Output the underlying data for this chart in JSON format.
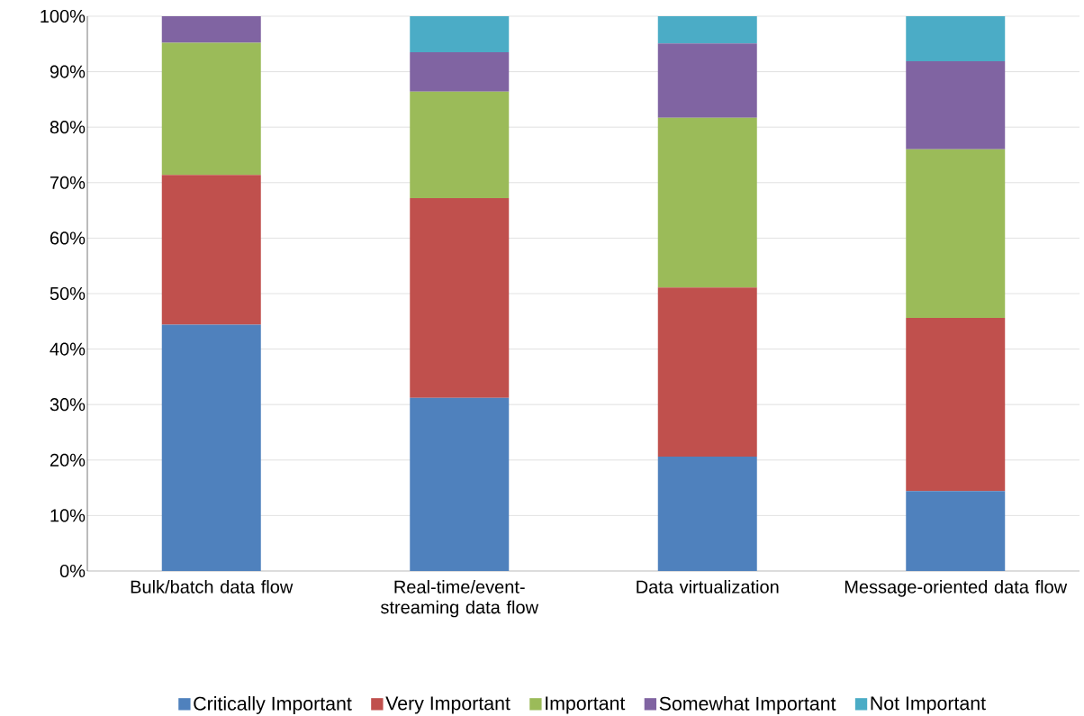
{
  "chart_data": {
    "type": "bar",
    "stacked": true,
    "categories": [
      "Bulk/batch data flow",
      "Real-time/event-streaming data flow",
      "Data virtualization",
      "Message-oriented data flow"
    ],
    "series": [
      {
        "name": "Critically Important",
        "color": "#4f81bd",
        "values": [
          44.4,
          31.2,
          20.6,
          14.4
        ]
      },
      {
        "name": "Very Important",
        "color": "#c0504d",
        "values": [
          27.0,
          36.0,
          30.5,
          31.2
        ]
      },
      {
        "name": "Important",
        "color": "#9bbb59",
        "values": [
          23.8,
          19.2,
          30.6,
          30.4
        ]
      },
      {
        "name": "Somewhat Important",
        "color": "#8064a2",
        "values": [
          4.8,
          7.1,
          13.4,
          15.9
        ]
      },
      {
        "name": "Not Important",
        "color": "#4bacc6",
        "values": [
          0,
          6.5,
          4.9,
          8.1
        ]
      }
    ],
    "ylim": [
      0,
      100
    ],
    "yticks": [
      {
        "value": 0,
        "label": "0%"
      },
      {
        "value": 10,
        "label": "10%"
      },
      {
        "value": 20,
        "label": "20%"
      },
      {
        "value": 30,
        "label": "30%"
      },
      {
        "value": 40,
        "label": "40%"
      },
      {
        "value": 50,
        "label": "50%"
      },
      {
        "value": 60,
        "label": "60%"
      },
      {
        "value": 70,
        "label": "70%"
      },
      {
        "value": 80,
        "label": "80%"
      },
      {
        "value": 90,
        "label": "90%"
      },
      {
        "value": 100,
        "label": "100%"
      }
    ],
    "grid": "y",
    "legend": "bottom"
  }
}
